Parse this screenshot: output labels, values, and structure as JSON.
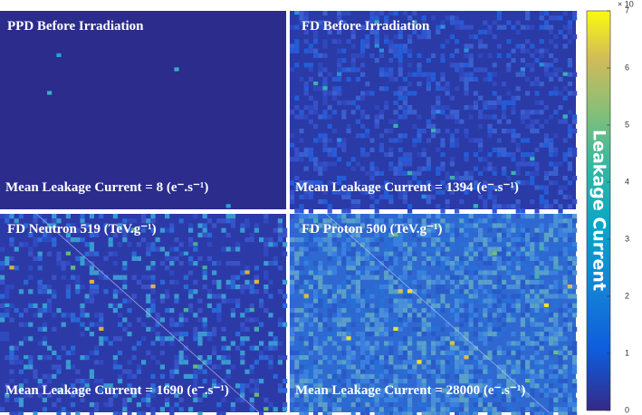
{
  "panels": [
    {
      "title": "PPD Before Irradiation",
      "caption": "Mean Leakage Current = 8 (e⁻.s⁻¹)"
    },
    {
      "title": "FD Before Irradiation",
      "caption": "Mean Leakage Current = 1394 (e⁻.s⁻¹)"
    },
    {
      "title": "FD Neutron 519 (TeV.g⁻¹)",
      "caption": "Mean Leakage Current = 1690 (e⁻.s⁻¹)"
    },
    {
      "title": "FD Proton 500 (TeV.g⁻¹)",
      "caption": "Mean Leakage Current = 28000 (e⁻.s⁻¹)"
    }
  ],
  "colorbar": {
    "label": "Leakage Current",
    "multiplier": "× 10",
    "ticks": [
      0,
      1,
      2,
      3,
      4,
      5,
      6,
      7
    ]
  }
}
